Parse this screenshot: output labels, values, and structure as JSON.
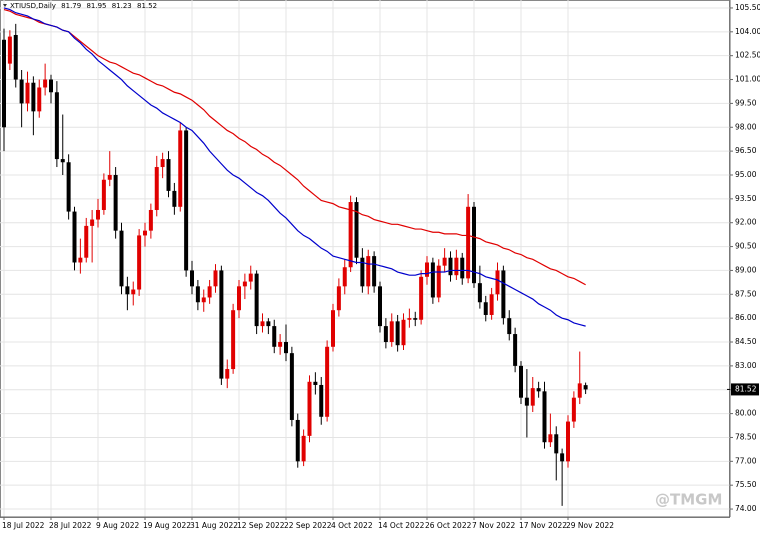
{
  "chart_data": {
    "type": "candlestick",
    "title": "XTIUSD,Daily",
    "watermark": "@TMGM",
    "up_color": "#e00000",
    "down_color": "#000000",
    "grid": true,
    "categories": [
      "18 Jul 2022",
      null,
      null,
      null,
      null,
      null,
      null,
      null,
      "28 Jul 2022",
      null,
      null,
      null,
      null,
      null,
      null,
      null,
      "9 Aug 2022",
      null,
      null,
      null,
      null,
      null,
      null,
      null,
      "19 Aug 2022",
      null,
      null,
      null,
      null,
      null,
      null,
      null,
      "31 Aug 2022",
      null,
      null,
      null,
      null,
      null,
      null,
      null,
      "12 Sep 2022",
      null,
      null,
      null,
      null,
      null,
      null,
      null,
      "22 Sep 2022",
      null,
      null,
      null,
      null,
      null,
      null,
      null,
      "4 Oct 2022",
      null,
      null,
      null,
      null,
      null,
      null,
      null,
      "14 Oct 2022",
      null,
      null,
      null,
      null,
      null,
      null,
      null,
      "26 Oct 2022",
      null,
      null,
      null,
      null,
      null,
      null,
      null,
      "7 Nov 2022",
      null,
      null,
      null,
      null,
      null,
      null,
      null,
      "17 Nov 2022",
      null,
      null,
      null,
      null,
      null,
      null,
      null,
      "29 Nov 2022",
      null,
      null,
      null
    ],
    "open": [
      103.5,
      102.0,
      103.8,
      101.0,
      99.5,
      100.8,
      99.0,
      100.5,
      101.0,
      100.2,
      96.0,
      95.8,
      92.7,
      89.5,
      89.8,
      91.8,
      92.2,
      92.8,
      94.7,
      95.0,
      91.5,
      88.0,
      87.5,
      87.8,
      91.2,
      91.5,
      92.8,
      95.5,
      96.0,
      94.0,
      93.0,
      97.8,
      89.0,
      88.0,
      87.0,
      87.3,
      88.0,
      89.0,
      82.2,
      82.8,
      86.5,
      88.0,
      88.3,
      88.8,
      85.5,
      85.8,
      85.5,
      84.2,
      84.5,
      83.8,
      79.6,
      77.0,
      78.6,
      82.0,
      81.8,
      79.8,
      84.2,
      86.5,
      88.0,
      89.2,
      93.3,
      89.8,
      88.0,
      89.9,
      88.0,
      85.5,
      84.5,
      85.8,
      84.3,
      85.9,
      86.0,
      85.9,
      88.6,
      89.5,
      87.3,
      89.3,
      89.8,
      88.7,
      89.8,
      88.5,
      93.0,
      88.2,
      87.0,
      86.2,
      87.5,
      89.0,
      86.0,
      85.0,
      83.0,
      81.0,
      80.5,
      81.6,
      81.4,
      78.2,
      78.7,
      77.5,
      77.0,
      79.5,
      81.0,
      81.79
    ],
    "high": [
      104.2,
      104.1,
      104.5,
      101.6,
      101.5,
      101.2,
      101.0,
      102.0,
      101.3,
      100.9,
      98.8,
      96.3,
      93.0,
      91.0,
      92.3,
      92.8,
      93.5,
      95.1,
      96.5,
      95.5,
      92.0,
      88.6,
      88.3,
      91.6,
      92.0,
      93.2,
      96.2,
      96.4,
      96.5,
      94.5,
      98.3,
      98.0,
      89.6,
      88.4,
      87.8,
      88.4,
      89.4,
      89.3,
      83.4,
      86.9,
      88.4,
      88.8,
      89.3,
      89.0,
      86.3,
      86.0,
      85.9,
      85.0,
      85.6,
      84.2,
      80.0,
      79.0,
      82.4,
      82.6,
      82.3,
      84.6,
      86.9,
      88.5,
      89.7,
      93.7,
      93.6,
      90.4,
      90.3,
      90.2,
      88.3,
      86.0,
      86.3,
      86.2,
      86.3,
      86.6,
      86.4,
      89.0,
      89.9,
      89.8,
      89.7,
      90.4,
      90.2,
      90.3,
      90.1,
      93.8,
      93.3,
      89.3,
      87.4,
      87.9,
      89.5,
      89.3,
      86.5,
      85.4,
      83.3,
      82.8,
      82.3,
      82.0,
      82.0,
      80.0,
      79.2,
      77.8,
      79.9,
      81.4,
      83.9,
      81.95
    ],
    "low": [
      96.5,
      101.6,
      100.5,
      98.0,
      99.0,
      97.5,
      98.6,
      100.0,
      99.5,
      95.5,
      95.0,
      92.2,
      89.0,
      88.8,
      89.5,
      89.5,
      91.7,
      92.5,
      94.3,
      91.0,
      87.5,
      86.5,
      86.8,
      87.4,
      90.5,
      91.0,
      92.4,
      94.8,
      93.6,
      92.5,
      92.7,
      88.6,
      87.5,
      86.5,
      86.4,
      86.9,
      87.6,
      81.8,
      81.6,
      82.5,
      86.0,
      87.2,
      87.8,
      85.0,
      85.1,
      85.0,
      83.8,
      83.7,
      83.3,
      79.2,
      76.6,
      76.7,
      78.2,
      81.2,
      79.3,
      79.5,
      83.9,
      86.1,
      87.5,
      88.9,
      89.4,
      87.6,
      87.5,
      87.6,
      85.1,
      84.1,
      84.2,
      83.9,
      84.0,
      85.4,
      85.5,
      85.6,
      88.1,
      86.9,
      87.0,
      88.9,
      88.3,
      88.4,
      88.1,
      88.2,
      87.9,
      86.6,
      85.8,
      85.9,
      87.1,
      85.6,
      84.6,
      82.6,
      80.6,
      78.5,
      80.1,
      81.0,
      77.8,
      77.9,
      75.8,
      74.2,
      76.6,
      79.1,
      80.6,
      81.23
    ],
    "close": [
      98.0,
      103.7,
      101.0,
      99.5,
      100.8,
      99.0,
      100.5,
      101.0,
      100.2,
      96.0,
      95.8,
      92.7,
      89.5,
      89.8,
      91.8,
      92.2,
      92.8,
      94.7,
      95.0,
      91.5,
      88.0,
      87.5,
      87.8,
      91.2,
      91.5,
      92.8,
      95.5,
      96.0,
      94.0,
      93.0,
      97.8,
      89.0,
      88.0,
      87.0,
      87.3,
      88.0,
      89.0,
      82.2,
      82.8,
      86.5,
      88.0,
      88.3,
      88.8,
      85.5,
      85.8,
      85.5,
      84.2,
      84.5,
      83.8,
      79.6,
      77.0,
      78.6,
      82.0,
      81.8,
      79.8,
      84.2,
      86.5,
      88.0,
      89.2,
      93.3,
      89.8,
      88.0,
      89.9,
      88.0,
      85.5,
      84.5,
      85.8,
      84.3,
      85.9,
      86.0,
      85.9,
      88.6,
      89.5,
      87.3,
      89.3,
      89.8,
      88.7,
      89.8,
      88.5,
      93.0,
      88.2,
      87.0,
      86.2,
      87.5,
      89.0,
      86.0,
      85.0,
      83.0,
      81.0,
      80.5,
      81.6,
      81.4,
      78.2,
      78.7,
      77.5,
      77.0,
      79.5,
      81.0,
      81.9,
      81.52
    ],
    "lines": [
      {
        "color": "#e00000",
        "values": [
          105.4,
          105.3,
          105.1,
          105.0,
          104.9,
          104.8,
          104.6,
          104.5,
          104.4,
          104.3,
          104.1,
          104.0,
          103.7,
          103.4,
          103.1,
          102.8,
          102.5,
          102.3,
          102.1,
          102.0,
          101.8,
          101.6,
          101.4,
          101.3,
          101.1,
          100.9,
          100.7,
          100.6,
          100.4,
          100.2,
          100.1,
          99.9,
          99.7,
          99.4,
          99.1,
          98.7,
          98.4,
          98.1,
          97.8,
          97.6,
          97.3,
          97.1,
          96.8,
          96.6,
          96.3,
          96.1,
          95.8,
          95.6,
          95.3,
          95.0,
          94.7,
          94.3,
          94.0,
          93.7,
          93.4,
          93.3,
          93.2,
          93.0,
          92.9,
          92.8,
          92.7,
          92.5,
          92.4,
          92.2,
          92.1,
          92.0,
          91.9,
          91.9,
          91.8,
          91.7,
          91.6,
          91.6,
          91.5,
          91.4,
          91.4,
          91.3,
          91.3,
          91.3,
          91.2,
          91.2,
          91.1,
          91.0,
          90.8,
          90.7,
          90.6,
          90.4,
          90.3,
          90.1,
          90.0,
          89.8,
          89.7,
          89.5,
          89.3,
          89.1,
          89.0,
          88.8,
          88.6,
          88.5,
          88.3,
          88.1
        ]
      },
      {
        "color": "#0000cc",
        "values": [
          105.5,
          105.4,
          105.2,
          105.1,
          105.0,
          104.8,
          104.7,
          104.5,
          104.4,
          104.3,
          104.1,
          104.0,
          103.6,
          103.3,
          102.9,
          102.6,
          102.2,
          101.9,
          101.6,
          101.3,
          101.0,
          100.6,
          100.3,
          100.0,
          99.7,
          99.4,
          99.2,
          98.9,
          98.7,
          98.5,
          98.3,
          98.0,
          97.8,
          97.4,
          97.0,
          96.5,
          96.1,
          95.7,
          95.3,
          95.0,
          94.8,
          94.5,
          94.2,
          93.9,
          93.7,
          93.4,
          93.0,
          92.6,
          92.3,
          91.9,
          91.5,
          91.2,
          91.0,
          90.7,
          90.4,
          90.2,
          89.9,
          89.8,
          89.7,
          89.6,
          89.5,
          89.5,
          89.4,
          89.4,
          89.3,
          89.2,
          89.1,
          88.9,
          88.8,
          88.7,
          88.7,
          88.8,
          88.8,
          88.9,
          88.9,
          88.9,
          89.0,
          89.0,
          89.0,
          89.0,
          88.9,
          88.8,
          88.6,
          88.5,
          88.4,
          88.2,
          88.0,
          87.8,
          87.6,
          87.4,
          87.2,
          86.9,
          86.7,
          86.5,
          86.2,
          86.0,
          85.9,
          85.7,
          85.6,
          85.5
        ]
      }
    ],
    "last_price": {
      "value": 81.52,
      "label": "81.52"
    },
    "ylim": [
      73.5,
      106.0
    ],
    "yticks": [
      {
        "value": 105.5,
        "label": "105.50"
      },
      {
        "value": 104.0,
        "label": "104.00"
      },
      {
        "value": 102.5,
        "label": "102.50"
      },
      {
        "value": 101.0,
        "label": "101.00"
      },
      {
        "value": 99.5,
        "label": "99.50"
      },
      {
        "value": 98.0,
        "label": "98.00"
      },
      {
        "value": 96.5,
        "label": "96.50"
      },
      {
        "value": 95.0,
        "label": "95.00"
      },
      {
        "value": 93.5,
        "label": "93.50"
      },
      {
        "value": 92.0,
        "label": "92.00"
      },
      {
        "value": 90.5,
        "label": "90.50"
      },
      {
        "value": 89.0,
        "label": "89.00"
      },
      {
        "value": 87.5,
        "label": "87.50"
      },
      {
        "value": 86.0,
        "label": "86.00"
      },
      {
        "value": 84.5,
        "label": "84.50"
      },
      {
        "value": 83.0,
        "label": "83.00"
      },
      {
        "value": 81.5,
        "label": "81.50"
      },
      {
        "value": 80.0,
        "label": "80.00"
      },
      {
        "value": 78.5,
        "label": "78.50"
      },
      {
        "value": 77.0,
        "label": "77.00"
      },
      {
        "value": 75.5,
        "label": "75.50"
      },
      {
        "value": 74.0,
        "label": "74.00"
      }
    ]
  }
}
